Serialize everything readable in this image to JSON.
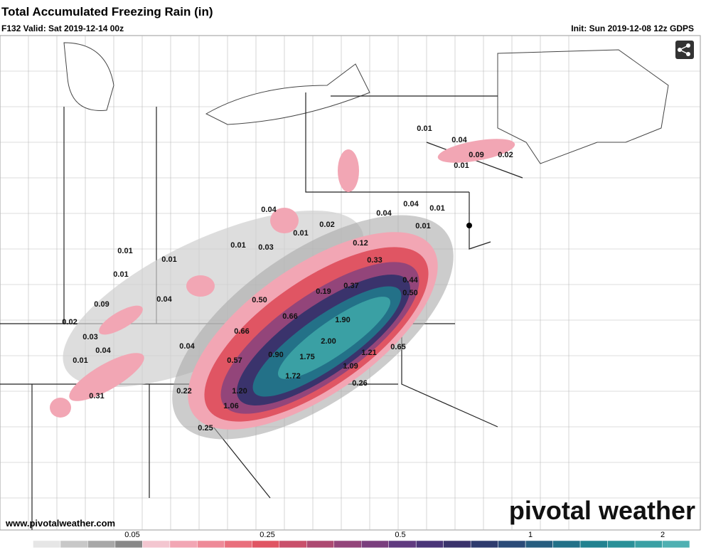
{
  "header": {
    "title": "Total Accumulated Freezing Rain (in)",
    "valid": "F132 Valid: Sat 2019-12-14 00z",
    "init": "Init: Sun 2019-12-08 12z GDPS"
  },
  "map_labels": [
    "0.01",
    "0.04",
    "0.09",
    "0.02",
    "0.01",
    "0.04",
    "0.04",
    "0.04",
    "0.01",
    "0.01",
    "0.02",
    "0.01",
    "0.01",
    "0.03",
    "0.12",
    "0.33",
    "0.01",
    "0.01",
    "0.01",
    "0.44",
    "0.37",
    "0.19",
    "0.50",
    "0.04",
    "0.09",
    "0.50",
    "0.66",
    "1.90",
    "0.02",
    "0.66",
    "0.03",
    "2.00",
    "0.04",
    "0.04",
    "0.65",
    "0.90",
    "1.75",
    "1.21",
    "0.01",
    "0.57",
    "1.09",
    "1.72",
    "0.26",
    "1.20",
    "0.22",
    "0.31",
    "1.06",
    "0.25"
  ],
  "colorbar": {
    "ticks": [
      "0.05",
      "0.25",
      "0.5",
      "1",
      "2"
    ],
    "colors": [
      "#ffffff",
      "#e6e6e6",
      "#c8c8c8",
      "#a8a8a8",
      "#888888",
      "#f3c6d0",
      "#f2a6b4",
      "#ee8a98",
      "#e96f7c",
      "#e05563",
      "#c9506b",
      "#ad4a72",
      "#93457a",
      "#7a3f7e",
      "#603a80",
      "#4a3578",
      "#3a336c",
      "#2e3b6e",
      "#2b4b78",
      "#275e80",
      "#237188",
      "#228290",
      "#2a9098",
      "#3aa0a4",
      "#4fb0b2"
    ]
  },
  "footer": {
    "website": "www.pivotalweather.com",
    "brand": "pivotal weather"
  }
}
